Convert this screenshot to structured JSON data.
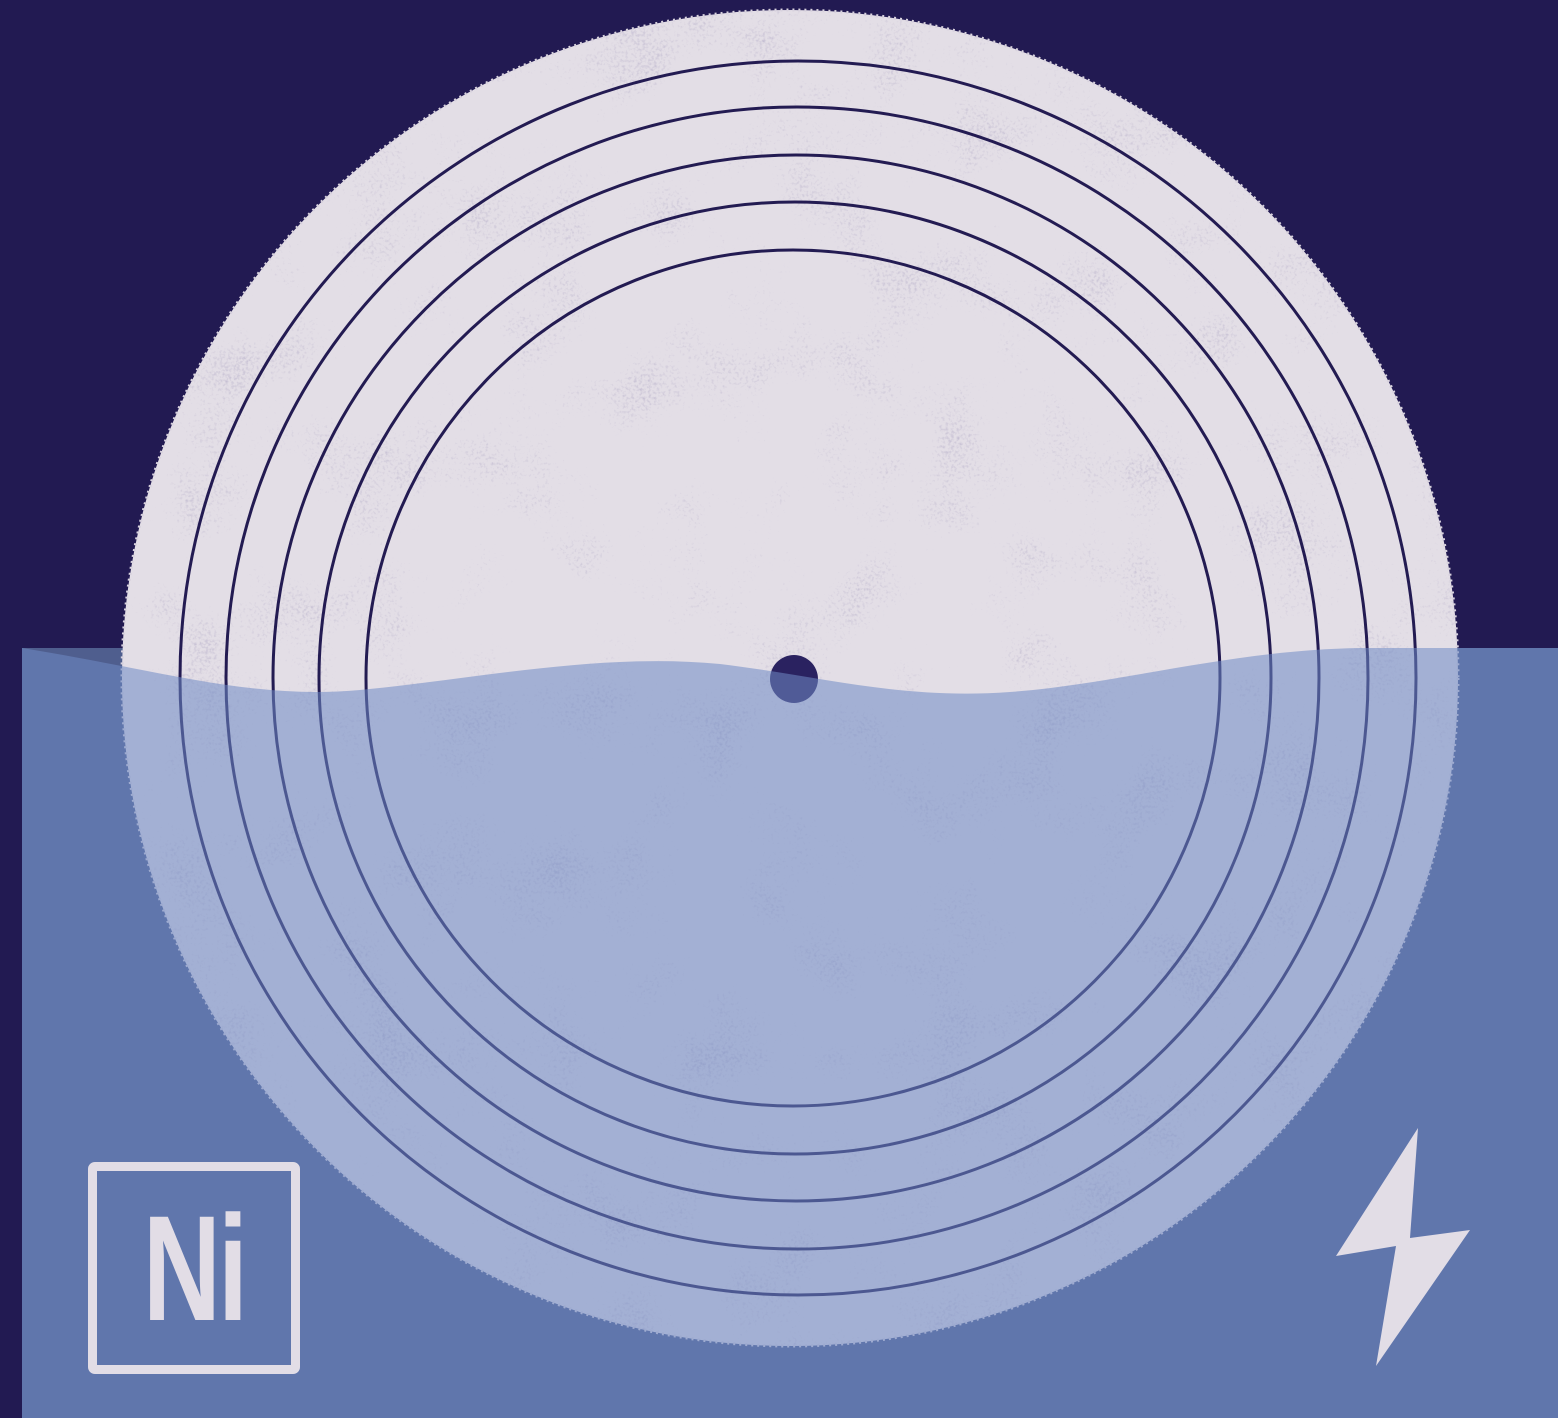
{
  "background_color": "#221a52",
  "water_color": "#4f5e8e",
  "disc_color": "#e3dee6",
  "groove_color": "#231b52",
  "badge": {
    "symbol": "Ni",
    "icon": "nickel-element-badge"
  },
  "bolt_icon": "lightning-bolt-icon"
}
